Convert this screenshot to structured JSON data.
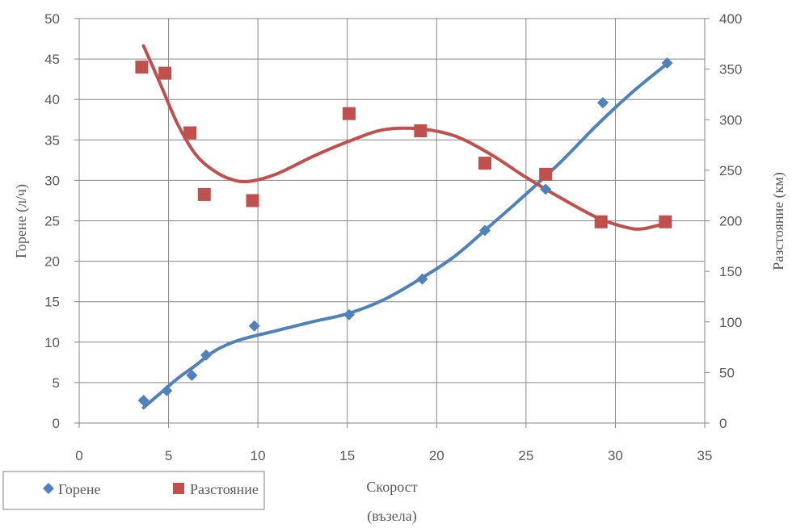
{
  "chart_data": {
    "type": "scatter",
    "x_axis": {
      "label_line1": "Скорост",
      "label_line2": "(възела)",
      "range": [
        0,
        35
      ],
      "ticks": [
        0,
        5,
        10,
        15,
        20,
        25,
        30,
        35
      ]
    },
    "y_axis_left": {
      "label": "Горене (л/ч)",
      "range": [
        0,
        50
      ],
      "ticks": [
        0,
        5,
        10,
        15,
        20,
        25,
        30,
        35,
        40,
        45,
        50
      ]
    },
    "y_axis_right": {
      "label": "Разстояние (км)",
      "range": [
        0,
        400
      ],
      "ticks": [
        0,
        50,
        100,
        150,
        200,
        250,
        300,
        350,
        400
      ]
    },
    "grid": true,
    "legend_position": "bottom-left",
    "series": [
      {
        "name": "Горене",
        "axis": "left",
        "color": "#4f81bd",
        "marker": "diamond",
        "points": [
          [
            3.6,
            2.8
          ],
          [
            4.9,
            4.0
          ],
          [
            6.3,
            5.9
          ],
          [
            7.1,
            8.4
          ],
          [
            9.8,
            12.0
          ],
          [
            15.1,
            13.4
          ],
          [
            19.2,
            17.8
          ],
          [
            22.7,
            23.8
          ],
          [
            26.1,
            28.9
          ],
          [
            29.3,
            39.6
          ],
          [
            32.9,
            44.5
          ]
        ],
        "trendline": [
          [
            3.6,
            1.9
          ],
          [
            4.5,
            3.6
          ],
          [
            5.5,
            5.5
          ],
          [
            6.5,
            7.1
          ],
          [
            7.5,
            8.8
          ],
          [
            8.5,
            9.9
          ],
          [
            9.5,
            10.6
          ],
          [
            11,
            11.4
          ],
          [
            13,
            12.5
          ],
          [
            15,
            13.5
          ],
          [
            17,
            15.2
          ],
          [
            19,
            17.7
          ],
          [
            21,
            20.6
          ],
          [
            23,
            24.4
          ],
          [
            25,
            28.3
          ],
          [
            27,
            32.4
          ],
          [
            29,
            36.9
          ],
          [
            31,
            41.0
          ],
          [
            33,
            44.6
          ]
        ]
      },
      {
        "name": "Разстояние",
        "axis": "right",
        "color": "#c0504d",
        "marker": "square",
        "points": [
          [
            3.5,
            352
          ],
          [
            4.8,
            346
          ],
          [
            6.2,
            287
          ],
          [
            7.0,
            226
          ],
          [
            9.7,
            220
          ],
          [
            15.1,
            306
          ],
          [
            19.1,
            289
          ],
          [
            22.7,
            257
          ],
          [
            26.1,
            246
          ],
          [
            29.2,
            199
          ],
          [
            32.8,
            199
          ]
        ],
        "trendline": [
          [
            3.6,
            373
          ],
          [
            4.5,
            337
          ],
          [
            5.5,
            296
          ],
          [
            6.5,
            266
          ],
          [
            7.5,
            250
          ],
          [
            8.5,
            241
          ],
          [
            9.5,
            239
          ],
          [
            11,
            246
          ],
          [
            13,
            263
          ],
          [
            15,
            278
          ],
          [
            17,
            290
          ],
          [
            19,
            291
          ],
          [
            21,
            284
          ],
          [
            23,
            266
          ],
          [
            25,
            243
          ],
          [
            27,
            222
          ],
          [
            29,
            203
          ],
          [
            30.5,
            194
          ],
          [
            31.5,
            192
          ],
          [
            32.9,
            198
          ]
        ]
      }
    ]
  }
}
